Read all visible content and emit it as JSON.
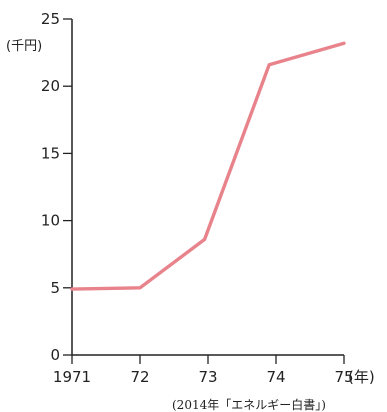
{
  "chart_data": {
    "type": "line",
    "title": "",
    "ylabel": "(千円)",
    "xlabel": "(年)",
    "x_positions": [
      1971,
      1972,
      1973,
      1974,
      1975
    ],
    "x_tick_labels": [
      "1971",
      "72",
      "73",
      "74",
      "75"
    ],
    "y_ticks": [
      0,
      5,
      10,
      15,
      20,
      25
    ],
    "ylim": [
      0,
      25
    ],
    "xlim": [
      1971,
      1975
    ],
    "grid": false,
    "series": [
      {
        "color": "#e8838b",
        "points": [
          {
            "x": 1971.0,
            "y": 4.9
          },
          {
            "x": 1972.0,
            "y": 5.0
          },
          {
            "x": 1972.95,
            "y": 8.6
          },
          {
            "x": 1973.9,
            "y": 21.6
          },
          {
            "x": 1975.0,
            "y": 23.2
          }
        ]
      }
    ],
    "source": "(2014年「エネルギー白書」)"
  }
}
